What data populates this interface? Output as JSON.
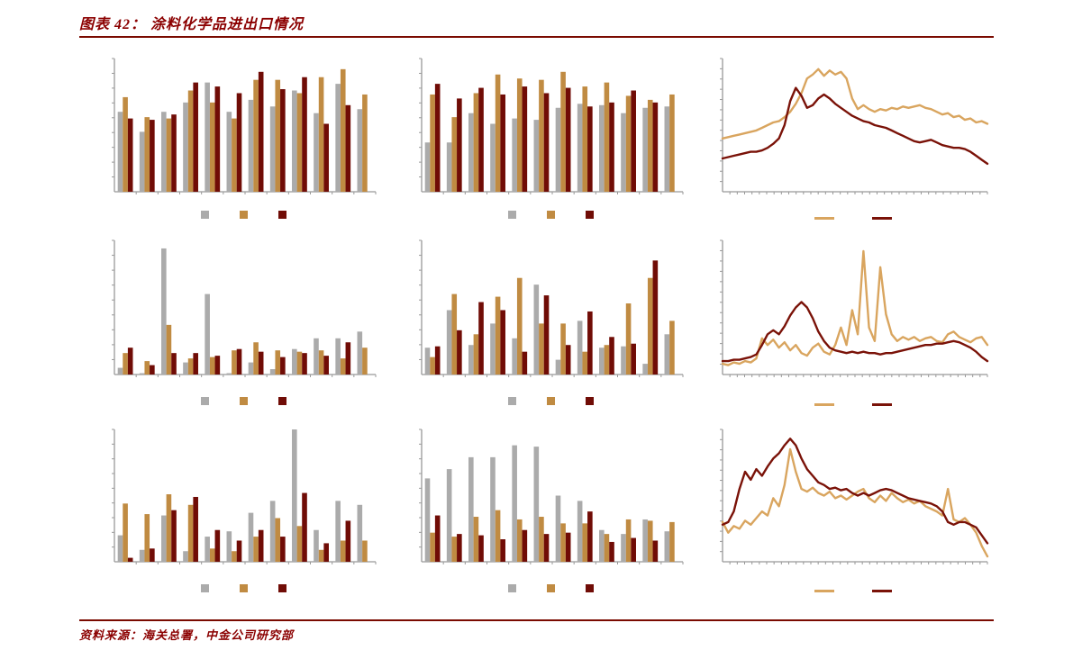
{
  "header": {
    "title": "图表 42： 涂料化学品进出口情况"
  },
  "footer": {
    "source": "资料来源：海关总署，中金公司研究部"
  },
  "colors": {
    "accent_red": "#8B0000",
    "rule_red": "#7A0A00",
    "bar_gray": "#ABABAB",
    "bar_tan": "#C08B42",
    "bar_darkred": "#700C06",
    "line_tan": "#D9A55F",
    "line_darkred": "#7A1208",
    "axis_gray": "#999999"
  },
  "chart_data": [
    {
      "id": "top_left_bar",
      "type": "bar",
      "groups": 12,
      "ylim": [
        0,
        100
      ],
      "categories": [
        "",
        "",
        "",
        "",
        "",
        "",
        "",
        "",
        "",
        "",
        "",
        ""
      ],
      "series": [
        {
          "name": "gray",
          "color": "bar_gray",
          "values": [
            60,
            45,
            60,
            67,
            82,
            60,
            69,
            64,
            76,
            59,
            81,
            62
          ]
        },
        {
          "name": "tan",
          "color": "bar_tan",
          "values": [
            71,
            56,
            55,
            76,
            67,
            55,
            84,
            84,
            74,
            86,
            92,
            73
          ]
        },
        {
          "name": "darkred",
          "color": "bar_darkred",
          "values": [
            55,
            54,
            58,
            82,
            79,
            74,
            90,
            77,
            86,
            51,
            65,
            null
          ]
        }
      ]
    },
    {
      "id": "top_middle_bar",
      "type": "bar",
      "groups": 12,
      "ylim": [
        0,
        100
      ],
      "categories": [
        "",
        "",
        "",
        "",
        "",
        "",
        "",
        "",
        "",
        "",
        "",
        ""
      ],
      "series": [
        {
          "name": "gray",
          "color": "bar_gray",
          "values": [
            37,
            37,
            59,
            51,
            55,
            54,
            63,
            66,
            65,
            59,
            63,
            64
          ]
        },
        {
          "name": "tan",
          "color": "bar_tan",
          "values": [
            73,
            56,
            74,
            88,
            85,
            84,
            90,
            79,
            82,
            72,
            69,
            73
          ]
        },
        {
          "name": "darkred",
          "color": "bar_darkred",
          "values": [
            81,
            70,
            78,
            73,
            79,
            74,
            78,
            64,
            67,
            76,
            67,
            null
          ]
        }
      ]
    },
    {
      "id": "top_right_line",
      "type": "line",
      "ylim": [
        0,
        100
      ],
      "series": [
        {
          "name": "tan",
          "color": "line_tan",
          "values": [
            40,
            41,
            42,
            43,
            44,
            45,
            46,
            48,
            50,
            52,
            53,
            56,
            60,
            66,
            74,
            85,
            88,
            92,
            87,
            91,
            88,
            90,
            85,
            70,
            62,
            65,
            62,
            60,
            62,
            61,
            63,
            62,
            64,
            63,
            64,
            65,
            63,
            62,
            60,
            58,
            59,
            56,
            57,
            54,
            55,
            52,
            53,
            51
          ]
        },
        {
          "name": "darkred",
          "color": "line_darkred",
          "values": [
            25,
            26,
            27,
            28,
            29,
            30,
            30,
            31,
            33,
            36,
            40,
            50,
            68,
            78,
            72,
            63,
            65,
            70,
            73,
            70,
            66,
            63,
            60,
            57,
            55,
            53,
            52,
            50,
            49,
            48,
            46,
            44,
            42,
            40,
            38,
            37,
            38,
            39,
            37,
            35,
            34,
            33,
            33,
            32,
            30,
            27,
            24,
            21
          ]
        }
      ]
    },
    {
      "id": "middle_left_bar",
      "type": "bar",
      "groups": 12,
      "ylim": [
        0,
        100
      ],
      "categories": [
        "",
        "",
        "",
        "",
        "",
        "",
        "",
        "",
        "",
        "",
        "",
        ""
      ],
      "series": [
        {
          "name": "gray",
          "color": "bar_gray",
          "values": [
            5,
            1,
            94,
            9,
            60,
            1,
            9,
            4,
            19,
            27,
            27,
            32
          ]
        },
        {
          "name": "tan",
          "color": "bar_tan",
          "values": [
            16,
            10,
            37,
            12,
            13,
            18,
            24,
            18,
            17,
            18,
            12,
            20
          ]
        },
        {
          "name": "darkred",
          "color": "bar_darkred",
          "values": [
            20,
            7,
            16,
            16,
            14,
            19,
            17,
            13,
            16,
            14,
            24,
            null
          ]
        }
      ]
    },
    {
      "id": "middle_middle_bar",
      "type": "bar",
      "groups": 12,
      "ylim": [
        0,
        100
      ],
      "categories": [
        "",
        "",
        "",
        "",
        "",
        "",
        "",
        "",
        "",
        "",
        "",
        ""
      ],
      "series": [
        {
          "name": "gray",
          "color": "bar_gray",
          "values": [
            20,
            48,
            22,
            38,
            27,
            67,
            11,
            40,
            20,
            21,
            8,
            30
          ]
        },
        {
          "name": "tan",
          "color": "bar_tan",
          "values": [
            13,
            60,
            30,
            58,
            72,
            38,
            38,
            17,
            22,
            53,
            72,
            40
          ]
        },
        {
          "name": "darkred",
          "color": "bar_darkred",
          "values": [
            21,
            33,
            54,
            48,
            17,
            59,
            22,
            47,
            28,
            23,
            85,
            null
          ]
        }
      ]
    },
    {
      "id": "middle_right_line",
      "type": "line",
      "ylim": [
        0,
        100
      ],
      "series": [
        {
          "name": "tan",
          "color": "line_tan",
          "values": [
            8,
            7,
            9,
            8,
            10,
            9,
            12,
            27,
            22,
            26,
            20,
            24,
            18,
            22,
            16,
            14,
            20,
            23,
            17,
            15,
            22,
            35,
            22,
            48,
            30,
            92,
            35,
            25,
            80,
            45,
            30,
            25,
            28,
            26,
            28,
            25,
            27,
            28,
            25,
            24,
            30,
            32,
            28,
            26,
            24,
            27,
            28,
            22
          ]
        },
        {
          "name": "darkred",
          "color": "line_darkred",
          "values": [
            10,
            10,
            11,
            11,
            12,
            13,
            15,
            22,
            30,
            33,
            30,
            36,
            44,
            50,
            54,
            50,
            42,
            32,
            25,
            20,
            18,
            17,
            16,
            17,
            16,
            17,
            16,
            16,
            15,
            16,
            16,
            17,
            18,
            19,
            20,
            21,
            22,
            22,
            23,
            23,
            24,
            25,
            24,
            22,
            20,
            17,
            13,
            10
          ]
        }
      ]
    },
    {
      "id": "bottom_left_bar",
      "type": "bar",
      "groups": 12,
      "ylim": [
        0,
        100
      ],
      "categories": [
        "",
        "",
        "",
        "",
        "",
        "",
        "",
        "",
        "",
        "",
        "",
        ""
      ],
      "series": [
        {
          "name": "gray",
          "color": "bar_gray",
          "values": [
            20,
            9,
            35,
            8,
            19,
            23,
            37,
            46,
            100,
            24,
            46,
            43
          ]
        },
        {
          "name": "tan",
          "color": "bar_tan",
          "values": [
            44,
            36,
            51,
            43,
            10,
            8,
            19,
            33,
            27,
            9,
            16,
            16
          ]
        },
        {
          "name": "darkred",
          "color": "bar_darkred",
          "values": [
            3,
            10,
            39,
            49,
            24,
            16,
            24,
            19,
            52,
            14,
            31,
            null
          ]
        }
      ]
    },
    {
      "id": "bottom_middle_bar",
      "type": "bar",
      "groups": 12,
      "ylim": [
        0,
        100
      ],
      "categories": [
        "",
        "",
        "",
        "",
        "",
        "",
        "",
        "",
        "",
        "",
        "",
        ""
      ],
      "series": [
        {
          "name": "gray",
          "color": "bar_gray",
          "values": [
            63,
            70,
            79,
            79,
            88,
            87,
            50,
            46,
            24,
            21,
            32,
            23
          ]
        },
        {
          "name": "tan",
          "color": "bar_tan",
          "values": [
            22,
            19,
            34,
            39,
            32,
            34,
            29,
            29,
            21,
            32,
            31,
            30
          ]
        },
        {
          "name": "darkred",
          "color": "bar_darkred",
          "values": [
            35,
            21,
            20,
            17,
            24,
            21,
            22,
            38,
            15,
            18,
            16,
            null
          ]
        }
      ]
    },
    {
      "id": "bottom_right_line",
      "type": "line",
      "ylim": [
        0,
        100
      ],
      "series": [
        {
          "name": "tan",
          "color": "line_tan",
          "values": [
            30,
            22,
            27,
            25,
            31,
            28,
            33,
            38,
            35,
            48,
            42,
            58,
            85,
            68,
            55,
            53,
            56,
            52,
            50,
            53,
            48,
            50,
            47,
            50,
            53,
            55,
            48,
            45,
            50,
            46,
            52,
            48,
            45,
            47,
            44,
            46,
            42,
            40,
            38,
            35,
            55,
            32,
            30,
            33,
            28,
            22,
            12,
            4
          ]
        },
        {
          "name": "darkred",
          "color": "line_darkred",
          "values": [
            28,
            30,
            38,
            55,
            68,
            62,
            70,
            65,
            72,
            78,
            82,
            88,
            93,
            88,
            78,
            70,
            65,
            60,
            58,
            55,
            56,
            54,
            55,
            52,
            50,
            52,
            50,
            52,
            54,
            55,
            54,
            52,
            50,
            48,
            47,
            46,
            45,
            44,
            42,
            38,
            30,
            28,
            30,
            30,
            28,
            26,
            20,
            14
          ]
        }
      ]
    }
  ]
}
